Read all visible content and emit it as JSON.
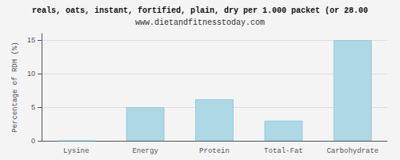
{
  "chart_data": {
    "type": "bar",
    "title": "reals, oats, instant, fortified, plain, dry per 1.000 packet (or 28.00",
    "subtitle": "www.dietandfitnesstoday.com",
    "ylabel": "Percentage of RDH (%)",
    "categories": [
      "Lysine",
      "Energy",
      "Protein",
      "Total-Fat",
      "Carbohydrate"
    ],
    "values": [
      0,
      5.0,
      6.2,
      3.0,
      15.0
    ],
    "color": "#add8e6",
    "ylim": [
      0,
      16
    ],
    "yticks": [
      0,
      5,
      10,
      15
    ],
    "grid": true
  }
}
